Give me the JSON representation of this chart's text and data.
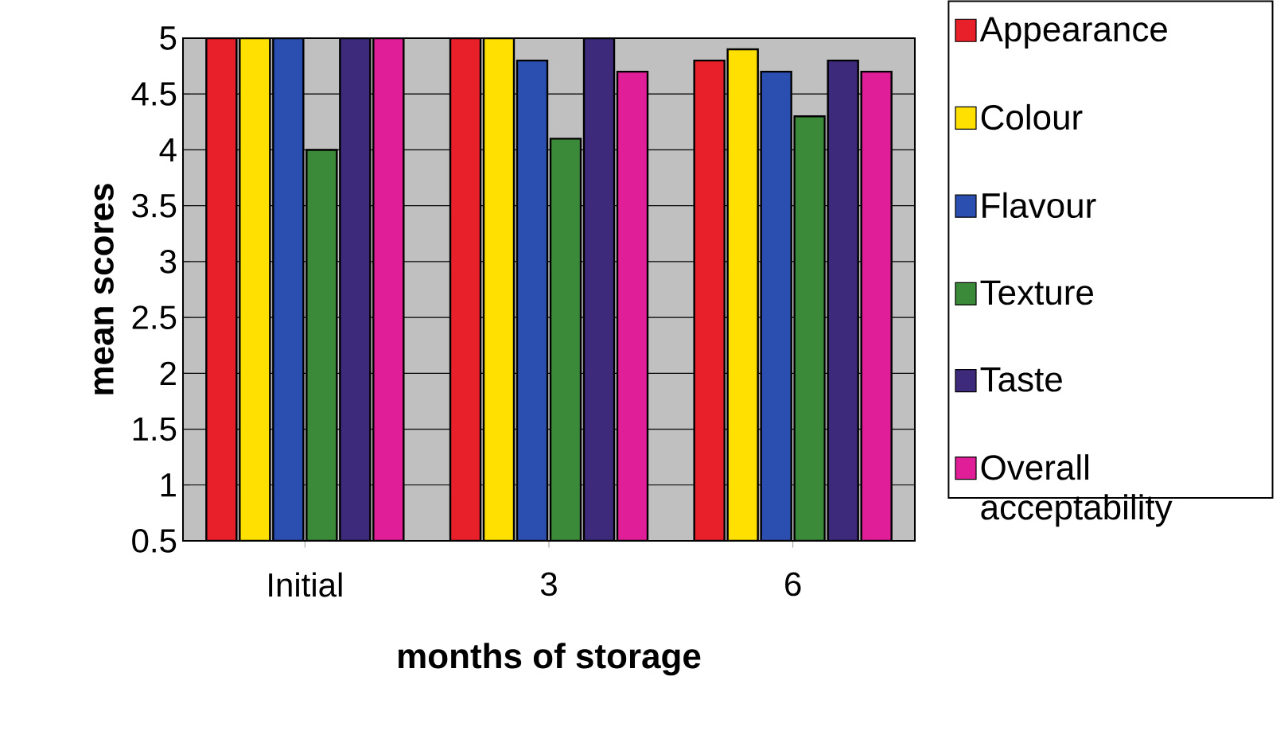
{
  "chart_data": {
    "type": "bar",
    "xlabel": "months of storage",
    "ylabel": "mean scores",
    "categories": [
      "Initial",
      "3",
      "6"
    ],
    "series": [
      {
        "name": "Appearance",
        "color": "#e8202a",
        "values": [
          5,
          5,
          4.8
        ]
      },
      {
        "name": "Colour",
        "color": "#ffe000",
        "values": [
          5,
          5,
          4.9
        ]
      },
      {
        "name": "Flavour",
        "color": "#2a4fb0",
        "values": [
          5,
          4.8,
          4.7
        ]
      },
      {
        "name": "Texture",
        "color": "#3a8a3a",
        "values": [
          4,
          4.1,
          4.3
        ]
      },
      {
        "name": "Taste",
        "color": "#3d2a7a",
        "values": [
          5,
          5,
          4.8
        ]
      },
      {
        "name": "Overall acceptability",
        "color": "#e01e98",
        "values": [
          5,
          4.7,
          4.7
        ]
      }
    ],
    "ylim": [
      0.5,
      5
    ],
    "yticks": [
      0.5,
      1,
      1.5,
      2,
      2.5,
      3,
      3.5,
      4,
      4.5,
      5
    ],
    "grid": "y",
    "legend": "right"
  }
}
